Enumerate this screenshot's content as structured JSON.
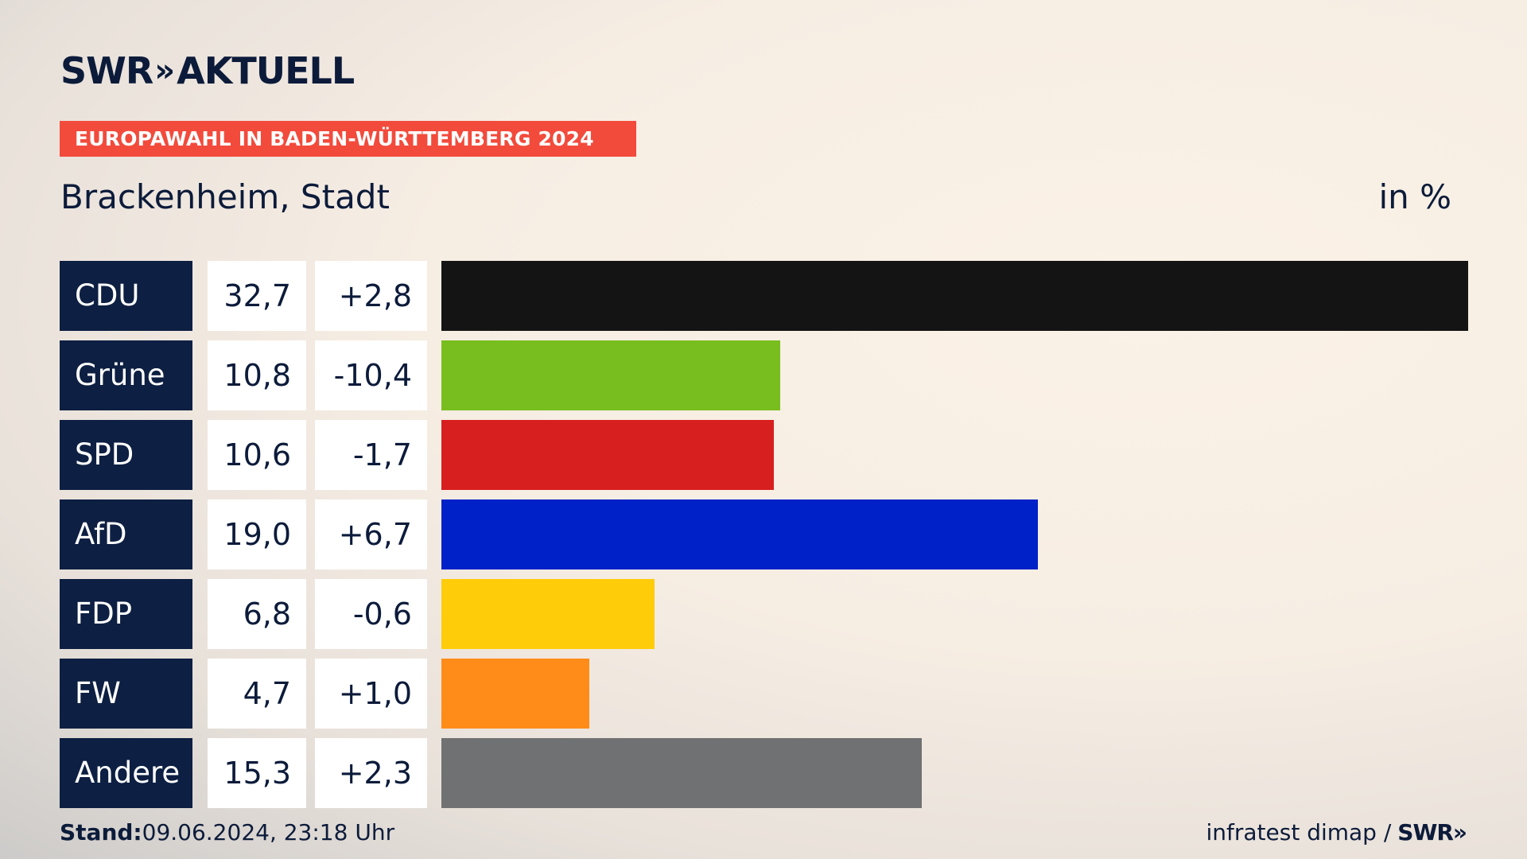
{
  "header": {
    "logo_text": "SWR",
    "logo_chevrons": "»",
    "logo_suffix": "AKTUELL",
    "banner": "EUROPAWAHL IN BADEN-WÜRTTEMBERG 2024",
    "subtitle": "Brackenheim, Stadt",
    "unit": "in %"
  },
  "chart_data": {
    "type": "bar",
    "orientation": "horizontal",
    "unit": "in %",
    "xlim": [
      0,
      32.7
    ],
    "rows": [
      {
        "party": "CDU",
        "value": 32.7,
        "value_label": "32,7",
        "diff_label": "+2,8",
        "color": "#141414"
      },
      {
        "party": "Grüne",
        "value": 10.8,
        "value_label": "10,8",
        "diff_label": "-10,4",
        "color": "#78be1e"
      },
      {
        "party": "SPD",
        "value": 10.6,
        "value_label": "10,6",
        "diff_label": "-1,7",
        "color": "#d71f1f"
      },
      {
        "party": "AfD",
        "value": 19.0,
        "value_label": "19,0",
        "diff_label": "+6,7",
        "color": "#0020c8"
      },
      {
        "party": "FDP",
        "value": 6.8,
        "value_label": "6,8",
        "diff_label": "-0,6",
        "color": "#ffcc0a"
      },
      {
        "party": "FW",
        "value": 4.7,
        "value_label": "4,7",
        "diff_label": "+1,0",
        "color": "#ff8c19"
      },
      {
        "party": "Andere",
        "value": 15.3,
        "value_label": "15,3",
        "diff_label": "+2,3",
        "color": "#707172"
      }
    ]
  },
  "footer": {
    "stand_label": "Stand:",
    "stand_value": "09.06.2024, 23:18 Uhr",
    "source": "infratest dimap /",
    "source_logo": "SWR»"
  }
}
